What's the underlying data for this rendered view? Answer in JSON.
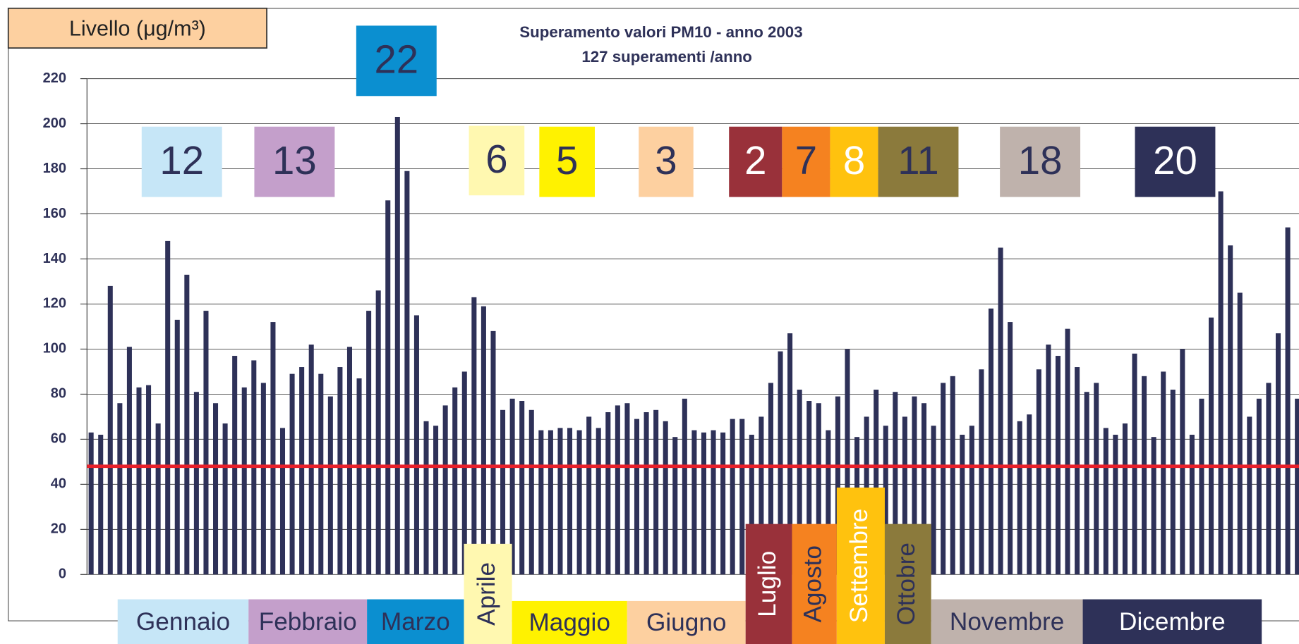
{
  "chart_data": {
    "type": "bar",
    "title": "Superamento valori PM10 - anno 2003",
    "subtitle": "127 superamenti /anno",
    "ylabel": "Livello (μg/m³)",
    "values": [
      63,
      62,
      128,
      76,
      101,
      83,
      84,
      67,
      148,
      113,
      133,
      81,
      117,
      76,
      67,
      97,
      83,
      95,
      85,
      112,
      65,
      89,
      92,
      102,
      89,
      79,
      92,
      101,
      87,
      117,
      126,
      166,
      203,
      179,
      115,
      68,
      66,
      75,
      83,
      90,
      123,
      119,
      108,
      73,
      78,
      77,
      73,
      64,
      64,
      65,
      65,
      64,
      70,
      65,
      72,
      75,
      76,
      69,
      72,
      73,
      68,
      61,
      78,
      64,
      63,
      64,
      63,
      69,
      69,
      62,
      70,
      85,
      99,
      107,
      82,
      77,
      76,
      64,
      79,
      100,
      61,
      70,
      82,
      66,
      81,
      70,
      79,
      76,
      66,
      85,
      88,
      62,
      66,
      91,
      118,
      145,
      112,
      68,
      71,
      91,
      102,
      97,
      109,
      92,
      81,
      85,
      65,
      62,
      67,
      98,
      88,
      61,
      90,
      82,
      100,
      62,
      78,
      114,
      170,
      146,
      125,
      70,
      78,
      85,
      107,
      154,
      78
    ],
    "color": "#2e3158",
    "ylim": [
      0,
      220
    ],
    "yticks": [
      0,
      20,
      40,
      60,
      80,
      100,
      120,
      140,
      160,
      180,
      200,
      220
    ],
    "grid": true,
    "threshold": 48,
    "threshold_color": "#e8202a",
    "months": [
      {
        "label": "Gennaio",
        "count": 12,
        "color": "#c6e6f7",
        "text_color": "#2e3158"
      },
      {
        "label": "Febbraio",
        "count": 13,
        "color": "#c49fcb",
        "text_color": "#2e3158"
      },
      {
        "label": "Marzo",
        "count": 22,
        "color": "#0b8fd0",
        "text_color": "#2e3158"
      },
      {
        "label": "Aprile",
        "count": 6,
        "color": "#fff8b0",
        "text_color": "#2e3158"
      },
      {
        "label": "Maggio",
        "count": 5,
        "color": "#fff200",
        "text_color": "#2e3158"
      },
      {
        "label": "Giugno",
        "count": 3,
        "color": "#fdd0a0",
        "text_color": "#2e3158"
      },
      {
        "label": "Luglio",
        "count": 2,
        "color": "#99313a",
        "text_color": "#ffffff"
      },
      {
        "label": "Agosto",
        "count": 7,
        "color": "#f58220",
        "text_color": "#2e3158"
      },
      {
        "label": "Settembre",
        "count": 8,
        "color": "#ffc20e",
        "text_color": "#ffffff"
      },
      {
        "label": "Ottobre",
        "count": 11,
        "color": "#8b7a3c",
        "text_color": "#2e3158"
      },
      {
        "label": "Novembre",
        "count": 18,
        "color": "#bfb2ac",
        "text_color": "#2e3158"
      },
      {
        "label": "Dicembre",
        "count": 20,
        "color": "#2e3158",
        "text_color": "#ffffff"
      }
    ]
  }
}
